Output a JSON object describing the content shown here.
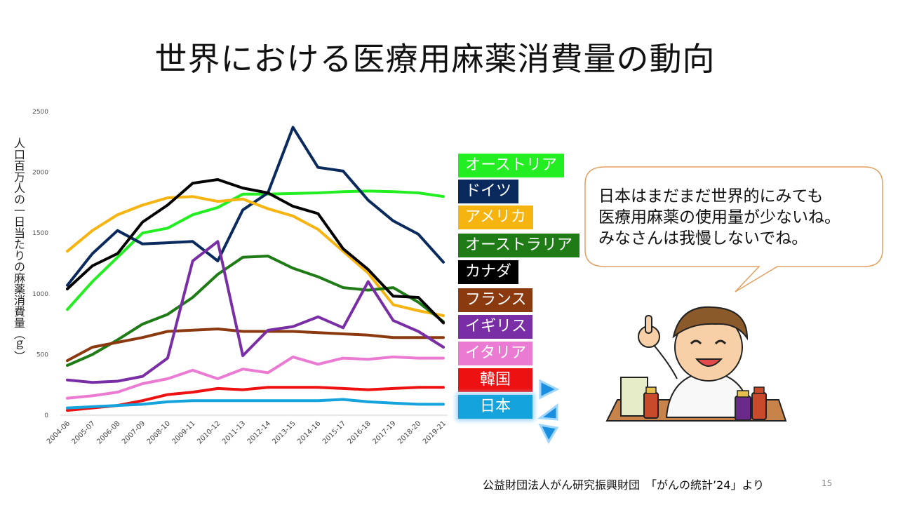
{
  "title": "世界における医療用麻薬消費量の動向",
  "chart_data": {
    "type": "line",
    "title": "",
    "xlabel": "",
    "ylabel": "人口百万人の一日当たりの麻薬消費量（ｇ）",
    "ylim": [
      0,
      2500
    ],
    "yticks": [
      0,
      500,
      1000,
      1500,
      2000,
      2500
    ],
    "x": [
      "2004-06",
      "2005-07",
      "2006-08",
      "2007-09",
      "2008-10",
      "2009-11",
      "2010-12",
      "2011-13",
      "2012-14",
      "2013-15",
      "2014-16",
      "2015-17",
      "2016-18",
      "2017-19",
      "2018-20",
      "2019-21"
    ],
    "grid": false,
    "legend_position": "right",
    "series": [
      {
        "name": "オーストリア",
        "color": "#22ee22",
        "values": [
          870,
          1100,
          1300,
          1500,
          1540,
          1650,
          1710,
          1820,
          1820,
          1825,
          1830,
          1840,
          1845,
          1840,
          1830,
          1800
        ]
      },
      {
        "name": "ドイツ",
        "color": "#0a2a5e",
        "values": [
          1070,
          1330,
          1520,
          1410,
          1420,
          1430,
          1270,
          1690,
          1830,
          2370,
          2040,
          2010,
          1770,
          1600,
          1490,
          1260
        ]
      },
      {
        "name": "アメリカ",
        "color": "#f6b411",
        "values": [
          1350,
          1520,
          1650,
          1730,
          1790,
          1800,
          1760,
          1780,
          1700,
          1640,
          1530,
          1350,
          1170,
          910,
          860,
          820
        ]
      },
      {
        "name": "オーストラリア",
        "color": "#1e7b16",
        "values": [
          410,
          500,
          620,
          750,
          830,
          970,
          1160,
          1300,
          1310,
          1210,
          1140,
          1050,
          1030,
          1050,
          930,
          770
        ]
      },
      {
        "name": "カナダ",
        "color": "#000000",
        "values": [
          1040,
          1230,
          1330,
          1590,
          1730,
          1910,
          1940,
          1870,
          1830,
          1720,
          1660,
          1370,
          1200,
          980,
          970,
          760
        ]
      },
      {
        "name": "フランス",
        "color": "#8b3a0f",
        "values": [
          450,
          560,
          600,
          640,
          690,
          700,
          710,
          690,
          690,
          690,
          680,
          670,
          660,
          640,
          640,
          640
        ]
      },
      {
        "name": "イギリス",
        "color": "#7a2ea6",
        "values": [
          290,
          270,
          280,
          320,
          470,
          1270,
          1430,
          490,
          700,
          730,
          810,
          720,
          1100,
          780,
          690,
          560
        ]
      },
      {
        "name": "イタリア",
        "color": "#ea7ad2",
        "values": [
          140,
          160,
          190,
          260,
          300,
          370,
          300,
          380,
          350,
          480,
          420,
          470,
          460,
          480,
          470,
          470
        ]
      },
      {
        "name": "韓国",
        "color": "#ee1111",
        "values": [
          40,
          60,
          80,
          120,
          170,
          190,
          220,
          210,
          230,
          230,
          230,
          220,
          210,
          220,
          230,
          230
        ]
      },
      {
        "name": "日本",
        "color": "#14a3dc",
        "values": [
          60,
          70,
          80,
          90,
          110,
          120,
          120,
          120,
          120,
          120,
          120,
          130,
          110,
          100,
          90,
          90
        ]
      }
    ]
  },
  "bubble": {
    "lines": [
      "日本はまだまだ世界的にみても",
      "医療用麻薬の使用量が少ないね。",
      "みなさんは我慢しないでね。"
    ]
  },
  "footer": "公益財団法人がん研究振興財団　「がんの統計’24」より",
  "page_number": "15",
  "colors": {
    "legend_japan_highlight": "#14a3dc",
    "bubble_border": "#e0a060"
  }
}
